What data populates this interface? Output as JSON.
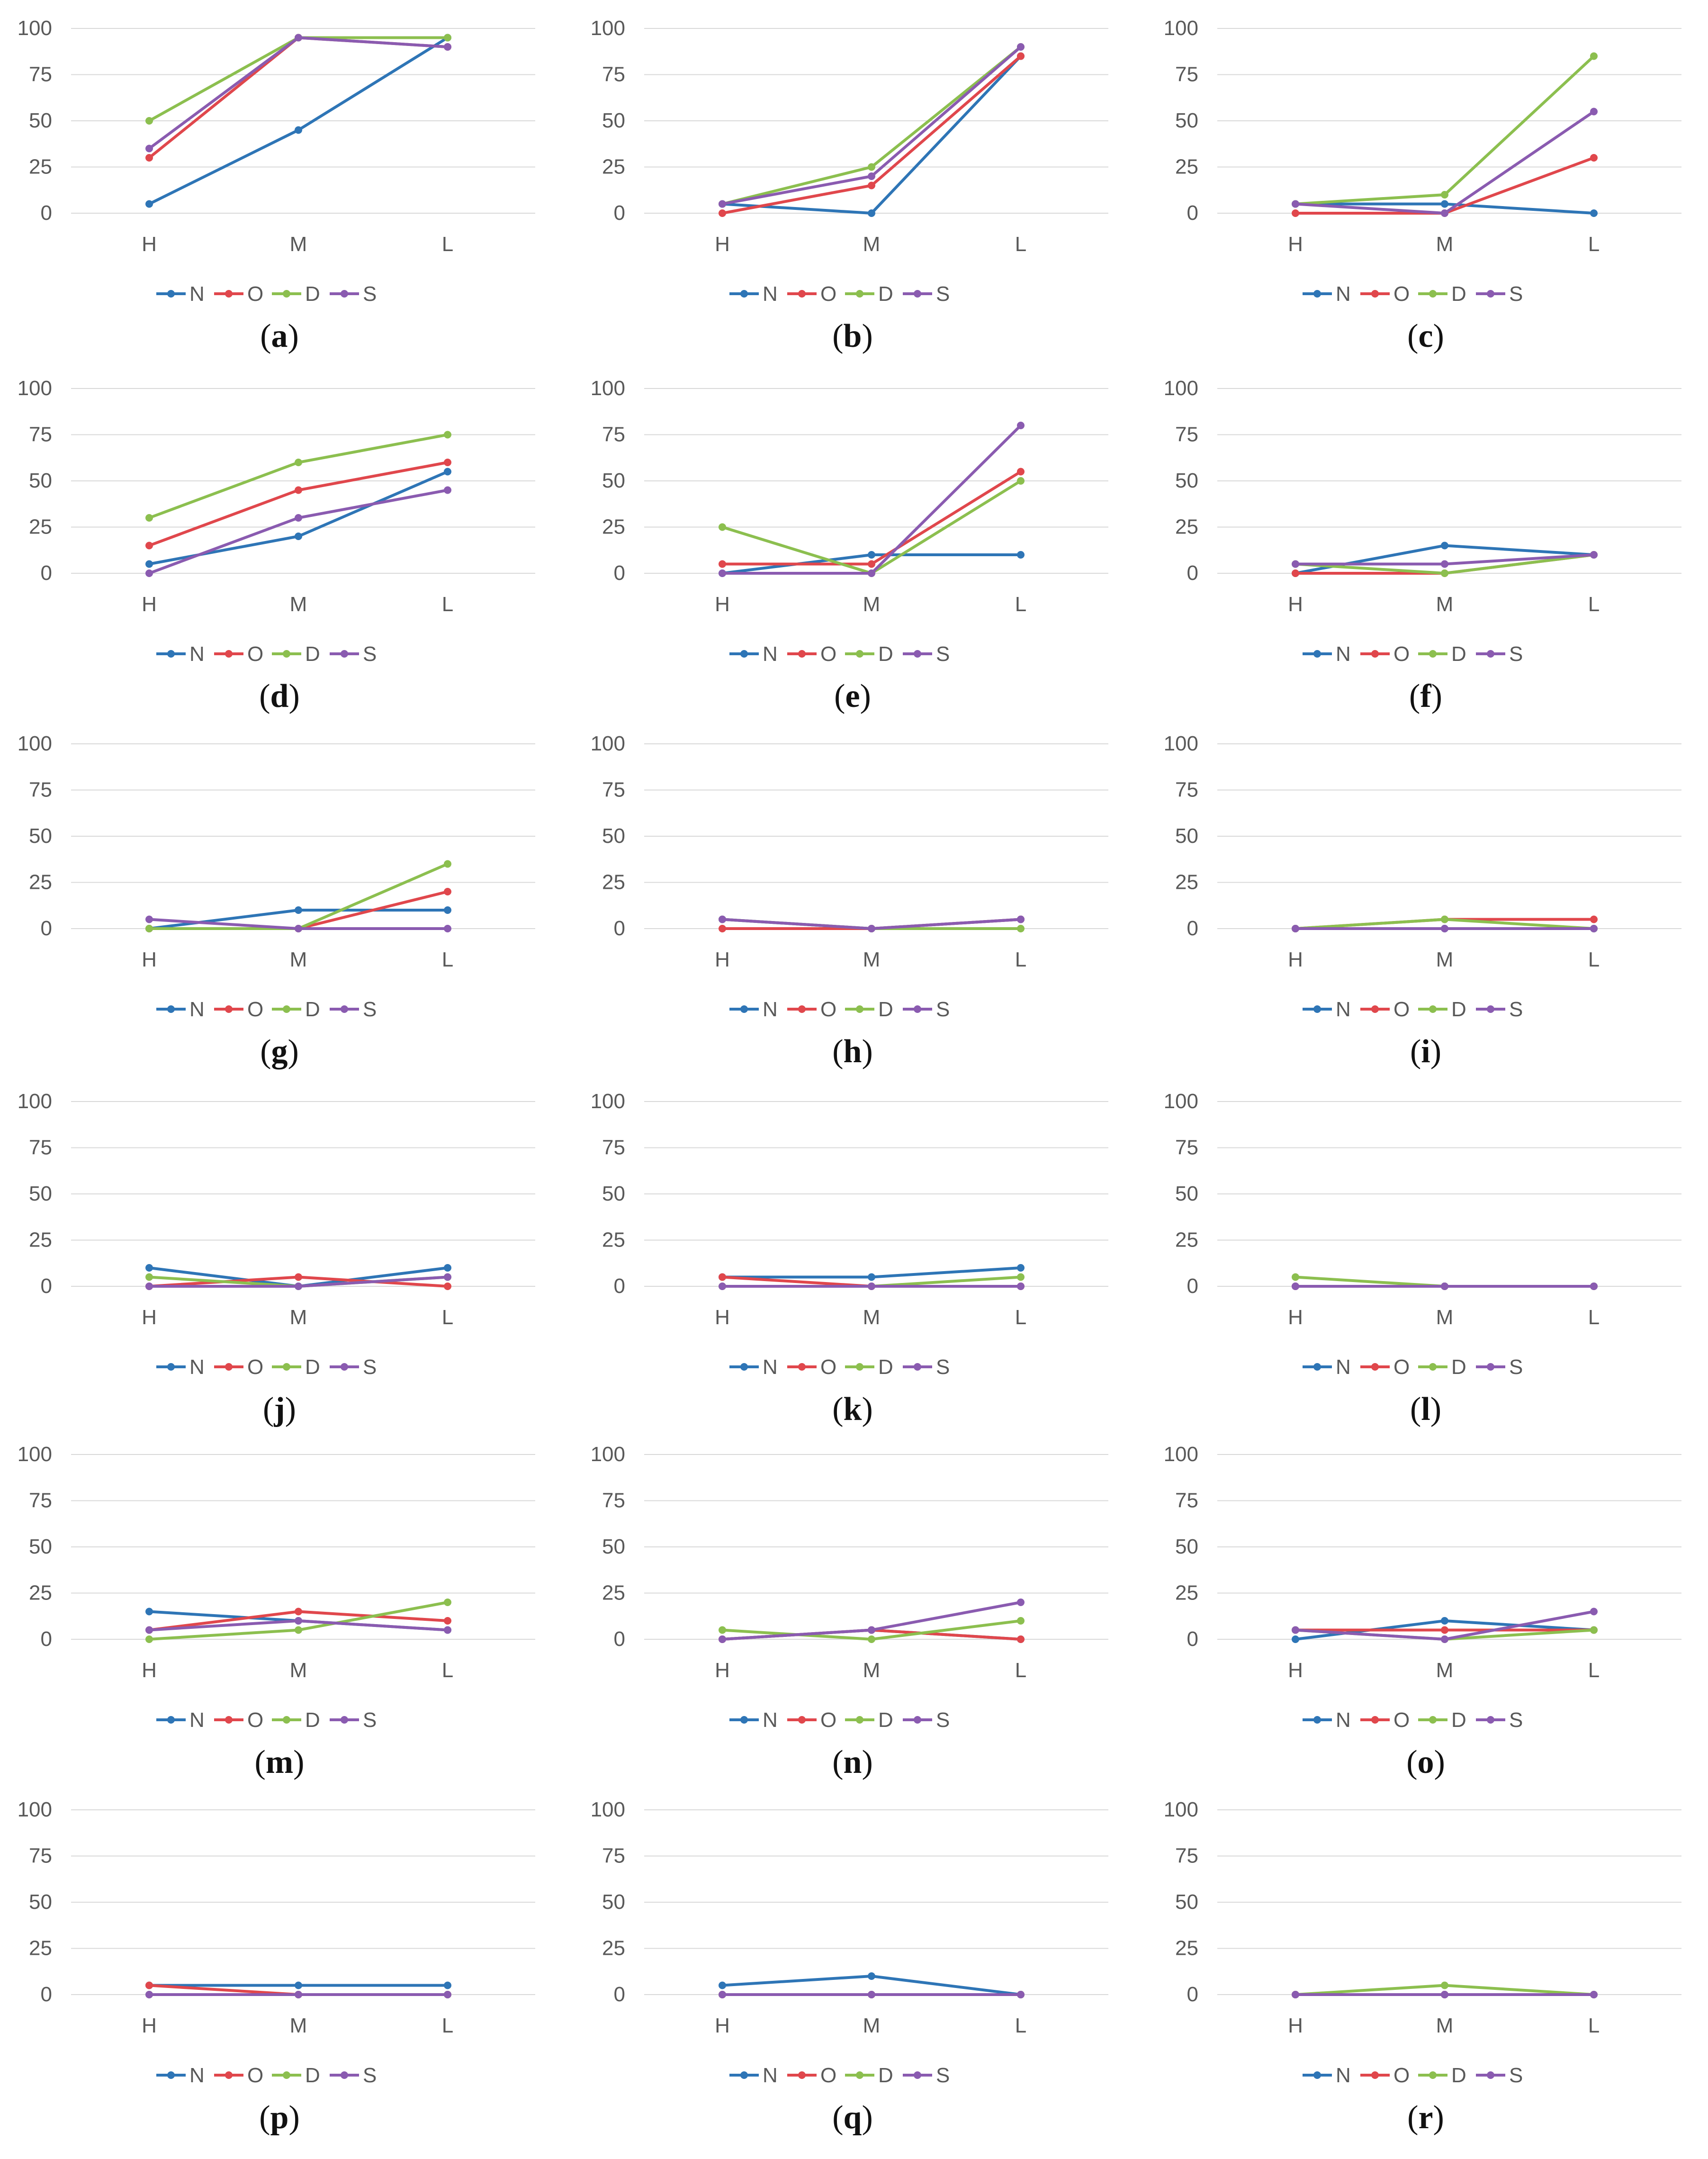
{
  "shared": {
    "ylim": [
      0,
      100
    ],
    "yticks": [
      "0",
      "25",
      "50",
      "75",
      "100"
    ],
    "series_names": [
      "N",
      "O",
      "D",
      "S"
    ],
    "colors": {
      "N": "#2e75b6",
      "O": "#e0474c",
      "D": "#8cbf4f",
      "S": "#8a5bb0"
    }
  },
  "chart_data": [
    {
      "id": "a",
      "type": "line",
      "caption_open": "(",
      "caption_letter": "a",
      "caption_close": ")",
      "categories": [
        "H",
        "M",
        "L"
      ],
      "ylim": [
        0,
        100
      ],
      "series": [
        {
          "name": "N",
          "values": [
            5,
            45,
            95
          ]
        },
        {
          "name": "O",
          "values": [
            30,
            95,
            90
          ]
        },
        {
          "name": "D",
          "values": [
            50,
            95,
            95
          ]
        },
        {
          "name": "S",
          "values": [
            35,
            95,
            90
          ]
        }
      ]
    },
    {
      "id": "b",
      "type": "line",
      "caption_open": "(",
      "caption_letter": "b",
      "caption_close": ")",
      "categories": [
        "H",
        "M",
        "L"
      ],
      "ylim": [
        0,
        100
      ],
      "series": [
        {
          "name": "N",
          "values": [
            5,
            0,
            85
          ]
        },
        {
          "name": "O",
          "values": [
            0,
            15,
            85
          ]
        },
        {
          "name": "D",
          "values": [
            5,
            25,
            90
          ]
        },
        {
          "name": "S",
          "values": [
            5,
            20,
            90
          ]
        }
      ]
    },
    {
      "id": "c",
      "type": "line",
      "caption_open": "(",
      "caption_letter": "c",
      "caption_close": ")",
      "categories": [
        "H",
        "M",
        "L"
      ],
      "ylim": [
        0,
        100
      ],
      "series": [
        {
          "name": "N",
          "values": [
            5,
            5,
            0
          ]
        },
        {
          "name": "O",
          "values": [
            0,
            0,
            30
          ]
        },
        {
          "name": "D",
          "values": [
            5,
            10,
            85
          ]
        },
        {
          "name": "S",
          "values": [
            5,
            0,
            55
          ]
        }
      ]
    },
    {
      "id": "d",
      "type": "line",
      "caption_open": "(",
      "caption_letter": "d",
      "caption_close": ")",
      "categories": [
        "H",
        "M",
        "L"
      ],
      "ylim": [
        0,
        100
      ],
      "series": [
        {
          "name": "N",
          "values": [
            5,
            20,
            55
          ]
        },
        {
          "name": "O",
          "values": [
            15,
            45,
            60
          ]
        },
        {
          "name": "D",
          "values": [
            30,
            60,
            75
          ]
        },
        {
          "name": "S",
          "values": [
            0,
            30,
            45
          ]
        }
      ]
    },
    {
      "id": "e",
      "type": "line",
      "caption_open": "(",
      "caption_letter": "e",
      "caption_close": ")",
      "categories": [
        "H",
        "M",
        "L"
      ],
      "ylim": [
        0,
        100
      ],
      "series": [
        {
          "name": "N",
          "values": [
            0,
            10,
            10
          ]
        },
        {
          "name": "O",
          "values": [
            5,
            5,
            55
          ]
        },
        {
          "name": "D",
          "values": [
            25,
            0,
            50
          ]
        },
        {
          "name": "S",
          "values": [
            0,
            0,
            80
          ]
        }
      ]
    },
    {
      "id": "f",
      "type": "line",
      "caption_open": "(",
      "caption_letter": "f",
      "caption_close": ")",
      "categories": [
        "H",
        "M",
        "L"
      ],
      "ylim": [
        0,
        100
      ],
      "series": [
        {
          "name": "N",
          "values": [
            0,
            15,
            10
          ]
        },
        {
          "name": "O",
          "values": [
            0,
            0,
            10
          ]
        },
        {
          "name": "D",
          "values": [
            5,
            0,
            10
          ]
        },
        {
          "name": "S",
          "values": [
            5,
            5,
            10
          ]
        }
      ]
    },
    {
      "id": "g",
      "type": "line",
      "caption_open": "(",
      "caption_letter": "g",
      "caption_close": ")",
      "categories": [
        "H",
        "M",
        "L"
      ],
      "ylim": [
        0,
        100
      ],
      "series": [
        {
          "name": "N",
          "values": [
            0,
            10,
            10
          ]
        },
        {
          "name": "O",
          "values": [
            0,
            0,
            20
          ]
        },
        {
          "name": "D",
          "values": [
            0,
            0,
            35
          ]
        },
        {
          "name": "S",
          "values": [
            5,
            0,
            0
          ]
        }
      ]
    },
    {
      "id": "h",
      "type": "line",
      "caption_open": "(",
      "caption_letter": "h",
      "caption_close": ")",
      "categories": [
        "H",
        "M",
        "L"
      ],
      "ylim": [
        0,
        100
      ],
      "series": [
        {
          "name": "N",
          "values": [
            5,
            0,
            5
          ]
        },
        {
          "name": "O",
          "values": [
            0,
            0,
            5
          ]
        },
        {
          "name": "D",
          "values": [
            5,
            0,
            0
          ]
        },
        {
          "name": "S",
          "values": [
            5,
            0,
            5
          ]
        }
      ]
    },
    {
      "id": "i",
      "type": "line",
      "caption_open": "(",
      "caption_letter": "i",
      "caption_close": ")",
      "categories": [
        "H",
        "M",
        "L"
      ],
      "ylim": [
        0,
        100
      ],
      "series": [
        {
          "name": "N",
          "values": [
            0,
            0,
            0
          ]
        },
        {
          "name": "O",
          "values": [
            0,
            5,
            5
          ]
        },
        {
          "name": "D",
          "values": [
            0,
            5,
            0
          ]
        },
        {
          "name": "S",
          "values": [
            0,
            0,
            0
          ]
        }
      ]
    },
    {
      "id": "j",
      "type": "line",
      "caption_open": "(",
      "caption_letter": "j",
      "caption_close": ")",
      "categories": [
        "H",
        "M",
        "L"
      ],
      "ylim": [
        0,
        100
      ],
      "series": [
        {
          "name": "N",
          "values": [
            10,
            0,
            10
          ]
        },
        {
          "name": "O",
          "values": [
            0,
            5,
            0
          ]
        },
        {
          "name": "D",
          "values": [
            5,
            0,
            5
          ]
        },
        {
          "name": "S",
          "values": [
            0,
            0,
            5
          ]
        }
      ]
    },
    {
      "id": "k",
      "type": "line",
      "caption_open": "(",
      "caption_letter": "k",
      "caption_close": ")",
      "categories": [
        "H",
        "M",
        "L"
      ],
      "ylim": [
        0,
        100
      ],
      "series": [
        {
          "name": "N",
          "values": [
            5,
            5,
            10
          ]
        },
        {
          "name": "O",
          "values": [
            5,
            0,
            0
          ]
        },
        {
          "name": "D",
          "values": [
            0,
            0,
            5
          ]
        },
        {
          "name": "S",
          "values": [
            0,
            0,
            0
          ]
        }
      ]
    },
    {
      "id": "l",
      "type": "line",
      "caption_open": "(",
      "caption_letter": "l",
      "caption_close": ")",
      "categories": [
        "H",
        "M",
        "L"
      ],
      "ylim": [
        0,
        100
      ],
      "series": [
        {
          "name": "N",
          "values": [
            0,
            0,
            0
          ]
        },
        {
          "name": "O",
          "values": [
            0,
            0,
            0
          ]
        },
        {
          "name": "D",
          "values": [
            5,
            0,
            0
          ]
        },
        {
          "name": "S",
          "values": [
            0,
            0,
            0
          ]
        }
      ]
    },
    {
      "id": "m",
      "type": "line",
      "caption_open": "(",
      "caption_letter": "m",
      "caption_close": ")",
      "categories": [
        "H",
        "M",
        "L"
      ],
      "ylim": [
        0,
        100
      ],
      "series": [
        {
          "name": "N",
          "values": [
            15,
            10,
            5
          ]
        },
        {
          "name": "O",
          "values": [
            5,
            15,
            10
          ]
        },
        {
          "name": "D",
          "values": [
            0,
            5,
            20
          ]
        },
        {
          "name": "S",
          "values": [
            5,
            10,
            5
          ]
        }
      ]
    },
    {
      "id": "n",
      "type": "line",
      "caption_open": "(",
      "caption_letter": "n",
      "caption_close": ")",
      "categories": [
        "H",
        "M",
        "L"
      ],
      "ylim": [
        0,
        100
      ],
      "series": [
        {
          "name": "N",
          "values": [
            0,
            5,
            0
          ]
        },
        {
          "name": "O",
          "values": [
            0,
            5,
            0
          ]
        },
        {
          "name": "D",
          "values": [
            5,
            0,
            10
          ]
        },
        {
          "name": "S",
          "values": [
            0,
            5,
            20
          ]
        }
      ]
    },
    {
      "id": "o",
      "type": "line",
      "caption_open": "(",
      "caption_letter": "o",
      "caption_close": ")",
      "categories": [
        "H",
        "M",
        "L"
      ],
      "ylim": [
        0,
        100
      ],
      "series": [
        {
          "name": "N",
          "values": [
            0,
            10,
            5
          ]
        },
        {
          "name": "O",
          "values": [
            5,
            5,
            5
          ]
        },
        {
          "name": "D",
          "values": [
            5,
            0,
            5
          ]
        },
        {
          "name": "S",
          "values": [
            5,
            0,
            15
          ]
        }
      ]
    },
    {
      "id": "p",
      "type": "line",
      "caption_open": "(",
      "caption_letter": "p",
      "caption_close": ")",
      "categories": [
        "H",
        "M",
        "L"
      ],
      "ylim": [
        0,
        100
      ],
      "series": [
        {
          "name": "N",
          "values": [
            5,
            5,
            5
          ]
        },
        {
          "name": "O",
          "values": [
            5,
            0,
            0
          ]
        },
        {
          "name": "D",
          "values": [
            0,
            0,
            0
          ]
        },
        {
          "name": "S",
          "values": [
            0,
            0,
            0
          ]
        }
      ]
    },
    {
      "id": "q",
      "type": "line",
      "caption_open": "(",
      "caption_letter": "q",
      "caption_close": ")",
      "categories": [
        "H",
        "M",
        "L"
      ],
      "ylim": [
        0,
        100
      ],
      "series": [
        {
          "name": "N",
          "values": [
            5,
            10,
            0
          ]
        },
        {
          "name": "O",
          "values": [
            0,
            0,
            0
          ]
        },
        {
          "name": "D",
          "values": [
            0,
            0,
            0
          ]
        },
        {
          "name": "S",
          "values": [
            0,
            0,
            0
          ]
        }
      ]
    },
    {
      "id": "r",
      "type": "line",
      "caption_open": "(",
      "caption_letter": "r",
      "caption_close": ")",
      "categories": [
        "H",
        "M",
        "L"
      ],
      "ylim": [
        0,
        100
      ],
      "series": [
        {
          "name": "N",
          "values": [
            0,
            0,
            0
          ]
        },
        {
          "name": "O",
          "values": [
            0,
            0,
            0
          ]
        },
        {
          "name": "D",
          "values": [
            0,
            5,
            0
          ]
        },
        {
          "name": "S",
          "values": [
            0,
            0,
            0
          ]
        }
      ]
    }
  ]
}
